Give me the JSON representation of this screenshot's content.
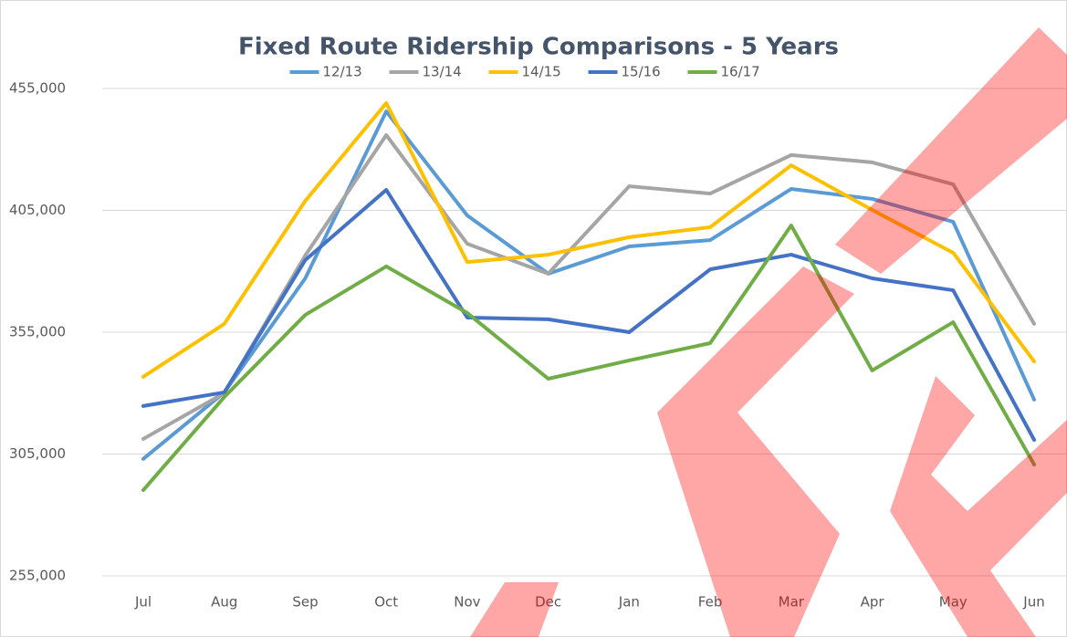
{
  "chart_data": {
    "type": "line",
    "title": "Fixed Route Ridership Comparisons - 5 Years",
    "categories": [
      "Jul",
      "Aug",
      "Sep",
      "Oct",
      "Nov",
      "Dec",
      "Jan",
      "Feb",
      "Mar",
      "Apr",
      "May",
      "Jun"
    ],
    "series": [
      {
        "name": "12/13",
        "color": "#5b9bd5",
        "values": [
          303000,
          330300,
          377100,
          445600,
          402900,
          379000,
          390200,
          392800,
          413800,
          409700,
          400300,
          327300
        ]
      },
      {
        "name": "13/14",
        "color": "#a5a5a5",
        "values": [
          311200,
          330000,
          386500,
          435900,
          391300,
          379000,
          414900,
          411900,
          427700,
          424700,
          415700,
          358400
        ]
      },
      {
        "name": "14/15",
        "color": "#ffc000",
        "values": [
          336700,
          358400,
          408900,
          449000,
          383800,
          386800,
          394000,
          398100,
          423500,
          405200,
          387600,
          343000
        ]
      },
      {
        "name": "15/16",
        "color": "#4472c4",
        "values": [
          324700,
          330300,
          384600,
          413400,
          361000,
          360300,
          355000,
          380800,
          386800,
          377100,
          372200,
          310800
        ]
      },
      {
        "name": "16/17",
        "color": "#70ad47",
        "values": [
          290200,
          328400,
          362100,
          382000,
          362900,
          335900,
          343400,
          350500,
          398800,
          339300,
          359100,
          300700
        ]
      }
    ],
    "ylim": [
      255000,
      455000
    ],
    "yticks": [
      {
        "value": 255000,
        "label": "255,000"
      },
      {
        "value": 305000,
        "label": "305,000"
      },
      {
        "value": 355000,
        "label": "355,000"
      },
      {
        "value": 405000,
        "label": "405,000"
      },
      {
        "value": 455000,
        "label": "455,000"
      }
    ],
    "grid": true,
    "legend": "top"
  }
}
